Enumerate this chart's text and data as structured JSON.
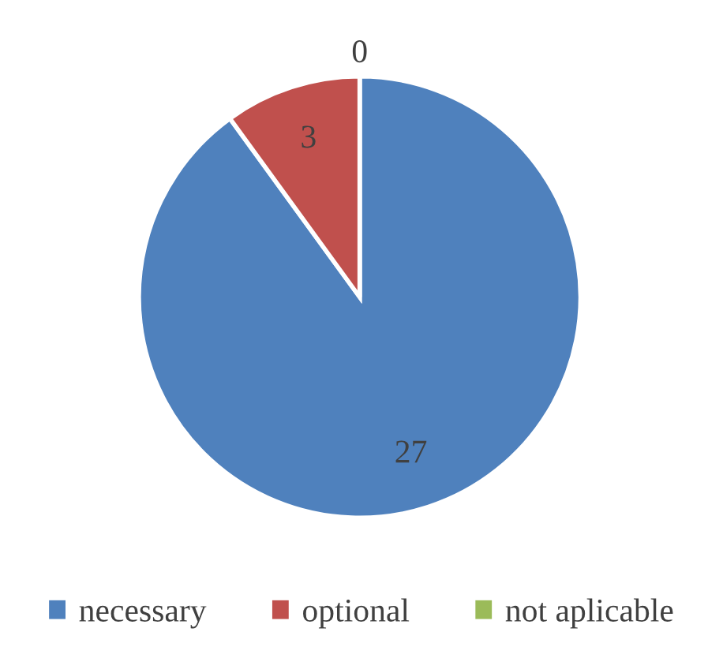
{
  "chart_data": {
    "type": "pie",
    "categories": [
      "necessary",
      "optional",
      "not aplicable"
    ],
    "values": [
      27,
      3,
      0
    ],
    "value_labels": [
      "27",
      "3",
      "0"
    ],
    "colors": [
      "#4f81bd",
      "#c0504d",
      "#9bbb59"
    ],
    "legend": "bottom"
  }
}
